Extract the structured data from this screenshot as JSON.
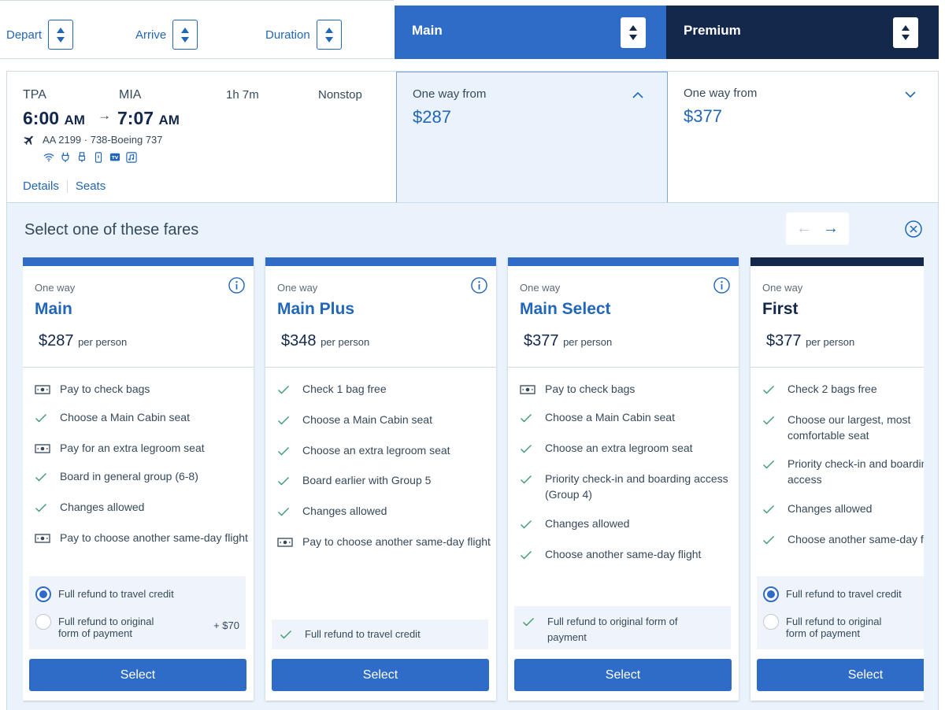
{
  "sort": {
    "depart_label": "Depart",
    "arrive_label": "Arrive",
    "duration_label": "Duration"
  },
  "cabins": {
    "main_label": "Main",
    "premium_label": "Premium"
  },
  "flight": {
    "origin": "TPA",
    "destination": "MIA",
    "depart_time": "6:00",
    "depart_ampm": "AM",
    "arrive_time": "7:07",
    "arrive_ampm": "AM",
    "arrow": "→",
    "duration": "1h 7m",
    "stops": "Nonstop",
    "flight_info": "AA 2199 · 738-Boeing 737",
    "amenities": [
      "wifi-icon",
      "power-icon",
      "usb-icon",
      "phone-icon",
      "tv-icon",
      "music-icon"
    ],
    "details_link": "Details",
    "seats_link": "Seats",
    "main_price_label": "One way from",
    "main_price": "$287",
    "premium_price_label": "One way from",
    "premium_price": "$377"
  },
  "panel": {
    "title": "Select one of these fares",
    "prev_arrow": "←",
    "next_arrow": "→"
  },
  "fares": [
    {
      "one_way": "One way",
      "name": "Main",
      "price": "$287",
      "per_person": "per person",
      "features": [
        {
          "icon": "money-icon",
          "text": "Pay to check bags"
        },
        {
          "icon": "check-icon",
          "text": "Choose a Main Cabin seat"
        },
        {
          "icon": "money-icon",
          "text": "Pay for an extra legroom seat"
        },
        {
          "icon": "check-icon",
          "text": "Board in general group (6-8)"
        },
        {
          "icon": "check-icon",
          "text": "Changes allowed"
        },
        {
          "icon": "money-icon",
          "text": "Pay to choose another same-day flight"
        }
      ],
      "refund_option_1": "Full refund to travel credit",
      "refund_option_2": "Full refund to original form of payment",
      "refund_option_2_extra": "+ $70",
      "select_label": "Select"
    },
    {
      "one_way": "One way",
      "name": "Main Plus",
      "price": "$348",
      "per_person": "per person",
      "features": [
        {
          "icon": "check-icon",
          "text": "Check 1 bag free"
        },
        {
          "icon": "check-icon",
          "text": "Choose a Main Cabin seat"
        },
        {
          "icon": "check-icon",
          "text": "Choose an extra legroom seat"
        },
        {
          "icon": "check-icon",
          "text": "Board earlier with Group 5"
        },
        {
          "icon": "check-icon",
          "text": "Changes allowed"
        },
        {
          "icon": "money-icon",
          "text": "Pay to choose another same-day flight"
        }
      ],
      "refund_included": "Full refund to travel credit",
      "select_label": "Select"
    },
    {
      "one_way": "One way",
      "name": "Main Select",
      "price": "$377",
      "per_person": "per person",
      "features": [
        {
          "icon": "money-icon",
          "text": "Pay to check bags"
        },
        {
          "icon": "check-icon",
          "text": "Choose a Main Cabin seat"
        },
        {
          "icon": "check-icon",
          "text": "Choose an extra legroom seat"
        },
        {
          "icon": "check-icon",
          "text": "Priority check-in and boarding access (Group 4)"
        },
        {
          "icon": "check-icon",
          "text": "Changes allowed"
        },
        {
          "icon": "check-icon",
          "text": "Choose another same-day flight"
        }
      ],
      "refund_included": "Full refund to original form of payment",
      "select_label": "Select"
    },
    {
      "one_way": "One way",
      "name": "First",
      "price": "$377",
      "per_person": "per person",
      "features": [
        {
          "icon": "check-icon",
          "text": "Check 2 bags free"
        },
        {
          "icon": "check-icon",
          "text": "Choose our largest, most comfortable seat"
        },
        {
          "icon": "check-icon",
          "text": "Priority check-in and boarding access"
        },
        {
          "icon": "check-icon",
          "text": "Changes allowed"
        },
        {
          "icon": "check-icon",
          "text": "Choose another same-day flight"
        }
      ],
      "refund_option_1": "Full refund to travel credit",
      "refund_option_2": "Full refund to original form of payment",
      "select_label": "Select"
    }
  ],
  "colors": {
    "accent_blue": "#2f6cc7",
    "link_blue": "#2266b8",
    "navy": "#13284a",
    "panel_bg": "#eaf3fb",
    "check_green": "#3d9a6e"
  }
}
